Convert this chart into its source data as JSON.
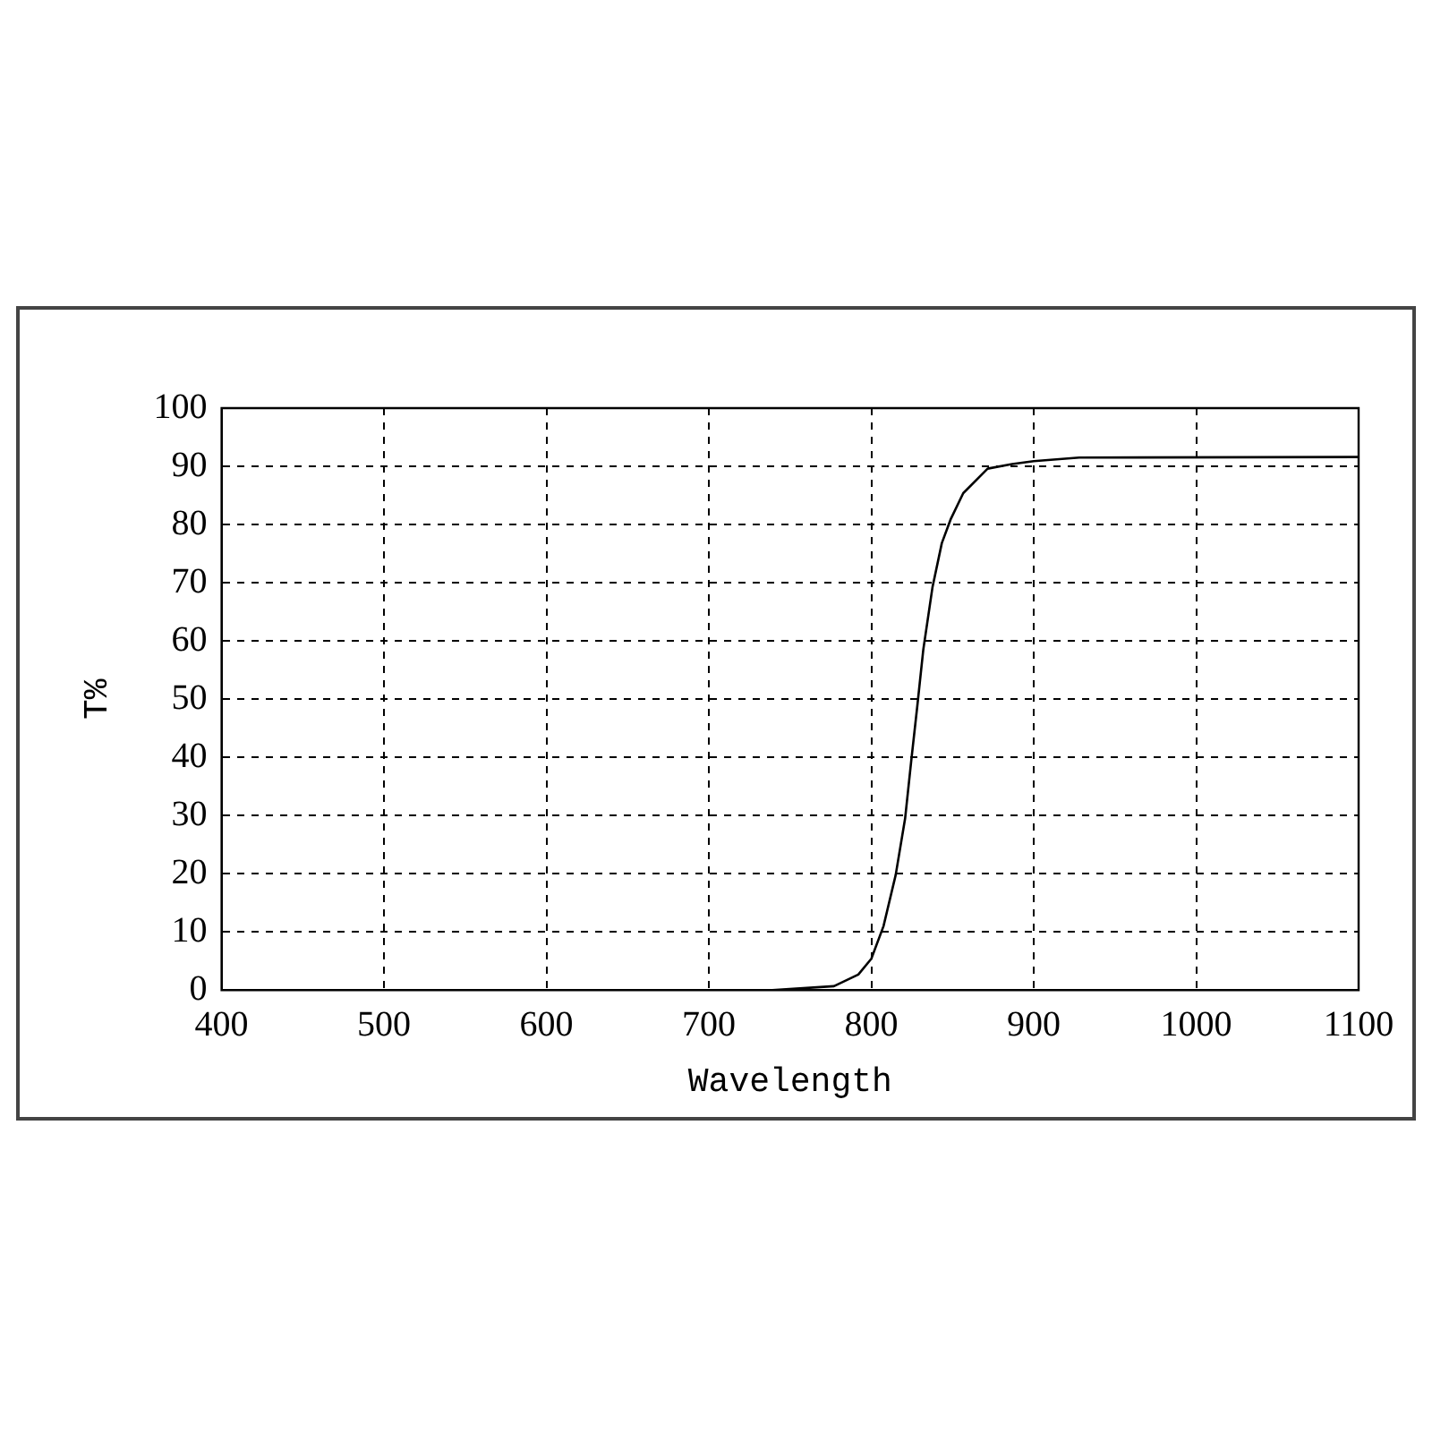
{
  "chart_data": {
    "type": "line",
    "xlabel": "Wavelength",
    "ylabel": "T%",
    "x": [
      739,
      777,
      792,
      800,
      807.5,
      815,
      820.8,
      824.5,
      828.3,
      832,
      837.7,
      843.4,
      849,
      856.6,
      871.6,
      886.7,
      900,
      928,
      1100
    ],
    "series": [
      {
        "color": "#000000",
        "values": [
          0,
          0.7,
          2.7,
          5.4,
          11,
          19.8,
          29.5,
          39.2,
          48.8,
          58.5,
          69.3,
          76.8,
          81,
          85.4,
          89.6,
          90.4,
          90.9,
          91.5,
          91.6
        ]
      }
    ],
    "xlim": [
      400,
      1100
    ],
    "xticks": [
      400,
      500,
      600,
      700,
      800,
      900,
      1000,
      1100
    ],
    "ylim": [
      0,
      100
    ],
    "yticks": [
      0,
      10,
      20,
      30,
      40,
      50,
      60,
      70,
      80,
      90,
      100
    ],
    "grid": true,
    "legend": false,
    "marker": "none",
    "line_style": "solid"
  }
}
